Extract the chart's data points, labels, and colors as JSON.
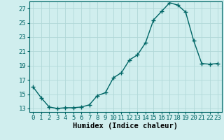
{
  "x": [
    0,
    1,
    2,
    3,
    4,
    5,
    6,
    7,
    8,
    9,
    10,
    11,
    12,
    13,
    14,
    15,
    16,
    17,
    18,
    19,
    20,
    21,
    22,
    23
  ],
  "y": [
    16.0,
    14.5,
    13.2,
    13.0,
    13.1,
    13.1,
    13.2,
    13.5,
    14.8,
    15.2,
    17.3,
    18.0,
    19.8,
    20.5,
    22.2,
    25.4,
    26.6,
    27.8,
    27.5,
    26.5,
    22.5,
    19.3,
    19.2,
    19.3
  ],
  "line_color": "#006666",
  "marker": "+",
  "marker_size": 4,
  "bg_color": "#d0eeee",
  "grid_color": "#b0d8d8",
  "xlabel": "Humidex (Indice chaleur)",
  "ylim": [
    12.5,
    28.0
  ],
  "xlim": [
    -0.5,
    23.5
  ],
  "yticks": [
    13,
    15,
    17,
    19,
    21,
    23,
    25,
    27
  ],
  "xticks": [
    0,
    1,
    2,
    3,
    4,
    5,
    6,
    7,
    8,
    9,
    10,
    11,
    12,
    13,
    14,
    15,
    16,
    17,
    18,
    19,
    20,
    21,
    22,
    23
  ],
  "xlabel_fontsize": 7.5,
  "tick_fontsize": 6.5,
  "linewidth": 1.0,
  "marker_linewidth": 1.0
}
